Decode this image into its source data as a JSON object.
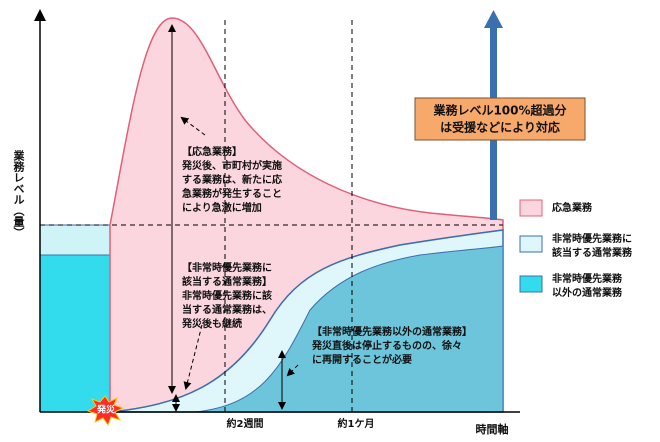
{
  "y_axis_label": "業務レベル（量）",
  "x_axis_label": "時間軸",
  "time_marks": [
    "約2週間",
    "約1ケ月"
  ],
  "disaster_label": "発災",
  "callout": [
    "業務レベル100%超過分",
    "は受援などにより対応"
  ],
  "annotations": [
    {
      "lines": [
        "【応急業務】",
        "発災後、市町村が実施",
        "する業務は、新たに応",
        "急業務が発生すること",
        "により急激に増加"
      ]
    },
    {
      "lines": [
        "【非常時優先業務に",
        "該当する通常業務】",
        "非常時優先業務に該",
        "当する通常業務は、",
        "発災後も継続"
      ]
    },
    {
      "lines": [
        "【非常時優先業務以外の通常業務】",
        "発災直後は停止するものの、徐々",
        "に再開することが必要"
      ]
    }
  ],
  "legend": [
    {
      "lines": [
        "応急業務"
      ]
    },
    {
      "lines": [
        "非常時優先業務に",
        "該当する通常業務"
      ]
    },
    {
      "lines": [
        "非常時優先業務",
        "以外の通常業務"
      ]
    }
  ]
}
